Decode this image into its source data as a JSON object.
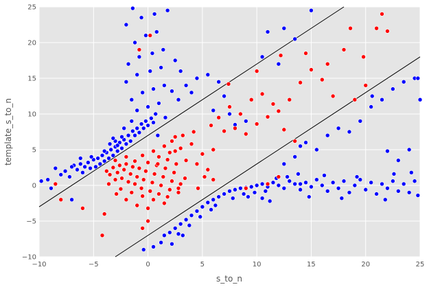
{
  "chart_data": {
    "type": "scatter",
    "title": "",
    "xlabel": "s_to_n",
    "ylabel": "template_s_to_n",
    "xlim": [
      -10,
      25
    ],
    "ylim": [
      -10,
      25
    ],
    "x_ticks": [
      -10,
      -5,
      0,
      5,
      10,
      15,
      20,
      25
    ],
    "y_ticks": [
      -10,
      -5,
      0,
      5,
      10,
      15,
      20,
      25
    ],
    "x_tick_labels": [
      "−10",
      "−5",
      "0",
      "5",
      "10",
      "15",
      "20",
      "25"
    ],
    "y_tick_labels": [
      "−10",
      "−5",
      "0",
      "5",
      "10",
      "15",
      "20",
      "25"
    ],
    "grid": true,
    "legend": "none",
    "colors": {
      "background": "#e5e5e5",
      "grid": "#ffffff",
      "series_blue": "#0000ff",
      "series_red": "#ff0000",
      "lines": "#000000"
    },
    "reference_lines": [
      {
        "slope": 1,
        "intercept": 7
      },
      {
        "slope": 1,
        "intercept": -7
      }
    ],
    "series": [
      {
        "color": "#0000ff",
        "points": [
          [
            -9.8,
            0.6
          ],
          [
            -9.2,
            0.8
          ],
          [
            -8.9,
            -0.4
          ],
          [
            -8.5,
            2.4
          ],
          [
            -8.0,
            1.5
          ],
          [
            -7.6,
            2.0
          ],
          [
            -7.2,
            1.2
          ],
          [
            -7.0,
            -2.0
          ],
          [
            -6.8,
            2.8
          ],
          [
            -6.5,
            2.2
          ],
          [
            -6.2,
            3.0
          ],
          [
            -6.0,
            1.8
          ],
          [
            -5.8,
            2.6
          ],
          [
            -5.5,
            3.2
          ],
          [
            -5.3,
            2.4
          ],
          [
            -5.0,
            3.6
          ],
          [
            -4.8,
            2.6
          ],
          [
            -4.6,
            3.8
          ],
          [
            -4.4,
            3.0
          ],
          [
            -4.2,
            4.2
          ],
          [
            -4.0,
            3.4
          ],
          [
            -3.8,
            4.6
          ],
          [
            -3.6,
            3.8
          ],
          [
            -3.4,
            5.0
          ],
          [
            -3.2,
            4.2
          ],
          [
            -3.0,
            5.4
          ],
          [
            -2.8,
            4.8
          ],
          [
            -2.6,
            6.0
          ],
          [
            -2.4,
            5.2
          ],
          [
            -2.2,
            6.4
          ],
          [
            -2.0,
            5.8
          ],
          [
            -1.8,
            7.0
          ],
          [
            -1.6,
            6.2
          ],
          [
            -1.4,
            7.6
          ],
          [
            -1.2,
            7.0
          ],
          [
            -1.0,
            8.0
          ],
          [
            -0.8,
            7.4
          ],
          [
            -0.6,
            8.6
          ],
          [
            -0.4,
            8.0
          ],
          [
            -0.2,
            9.0
          ],
          [
            0.0,
            8.4
          ],
          [
            0.3,
            9.4
          ],
          [
            0.5,
            8.8
          ],
          [
            0.7,
            10.0
          ],
          [
            -1.5,
            9.0
          ],
          [
            -2.2,
            8.0
          ],
          [
            -3.0,
            6.2
          ],
          [
            -1.0,
            10.5
          ],
          [
            0.0,
            11.0
          ],
          [
            1.0,
            11.5
          ],
          [
            -1.5,
            12.0
          ],
          [
            -0.5,
            13.0
          ],
          [
            0.5,
            13.5
          ],
          [
            1.5,
            14.0
          ],
          [
            -2.0,
            14.5
          ],
          [
            -1.0,
            15.5
          ],
          [
            0.2,
            16.0
          ],
          [
            1.2,
            16.5
          ],
          [
            -1.8,
            17.0
          ],
          [
            -0.8,
            18.0
          ],
          [
            0.4,
            18.5
          ],
          [
            1.4,
            19.0
          ],
          [
            -1.2,
            20.0
          ],
          [
            -0.2,
            21.0
          ],
          [
            0.8,
            21.5
          ],
          [
            -2.0,
            22.5
          ],
          [
            -0.6,
            23.5
          ],
          [
            0.6,
            24.0
          ],
          [
            1.8,
            24.5
          ],
          [
            -1.4,
            24.8
          ],
          [
            2.5,
            17.5
          ],
          [
            3.0,
            16.0
          ],
          [
            3.5,
            14.0
          ],
          [
            4.0,
            13.0
          ],
          [
            4.5,
            15.0
          ],
          [
            5.5,
            15.5
          ],
          [
            6.5,
            14.5
          ],
          [
            7.0,
            12.5
          ],
          [
            2.8,
            12.0
          ],
          [
            2.2,
            13.2
          ],
          [
            0.9,
            7.0
          ],
          [
            1.6,
            9.5
          ],
          [
            -3.5,
            5.8
          ],
          [
            -4.0,
            4.8
          ],
          [
            -5.2,
            4.0
          ],
          [
            -6.2,
            3.8
          ],
          [
            -7.0,
            2.6
          ],
          [
            -2.8,
            5.6
          ],
          [
            -2.4,
            6.8
          ],
          [
            -3.2,
            6.6
          ],
          [
            1.5,
            -7.0
          ],
          [
            2.0,
            -6.6
          ],
          [
            2.5,
            -6.0
          ],
          [
            3.0,
            -5.4
          ],
          [
            3.5,
            -4.8
          ],
          [
            4.0,
            -4.2
          ],
          [
            4.5,
            -3.6
          ],
          [
            5.0,
            -3.0
          ],
          [
            5.5,
            -2.4
          ],
          [
            6.0,
            -2.0
          ],
          [
            6.5,
            -1.6
          ],
          [
            7.0,
            -1.2
          ],
          [
            7.5,
            -0.8
          ],
          [
            8.0,
            -0.6
          ],
          [
            8.5,
            -0.4
          ],
          [
            9.0,
            -0.3
          ],
          [
            9.5,
            -0.2
          ],
          [
            10.0,
            0.0
          ],
          [
            10.5,
            0.2
          ],
          [
            11.0,
            -0.2
          ],
          [
            11.5,
            0.4
          ],
          [
            12.0,
            0.0
          ],
          [
            12.5,
            -0.4
          ],
          [
            13.0,
            0.6
          ],
          [
            13.5,
            0.2
          ],
          [
            14.0,
            -0.6
          ],
          [
            14.5,
            0.4
          ],
          [
            15.0,
            -0.2
          ],
          [
            15.5,
            0.8
          ],
          [
            16.0,
            0.0
          ],
          [
            16.5,
            -0.8
          ],
          [
            17.0,
            0.4
          ],
          [
            17.5,
            -0.4
          ],
          [
            18.0,
            0.6
          ],
          [
            18.5,
            -1.0
          ],
          [
            19.0,
            0.0
          ],
          [
            19.5,
            0.8
          ],
          [
            20.0,
            -0.6
          ],
          [
            20.5,
            0.4
          ],
          [
            21.0,
            -1.2
          ],
          [
            21.5,
            0.2
          ],
          [
            22.0,
            -0.4
          ],
          [
            22.5,
            0.6
          ],
          [
            23.0,
            -0.8
          ],
          [
            23.5,
            0.2
          ],
          [
            24.0,
            -1.0
          ],
          [
            24.5,
            0.6
          ],
          [
            24.8,
            -1.4
          ],
          [
            6.2,
            -2.8
          ],
          [
            5.8,
            -3.4
          ],
          [
            4.8,
            -4.4
          ],
          [
            3.8,
            -5.6
          ],
          [
            2.8,
            -6.8
          ],
          [
            1.2,
            -8.0
          ],
          [
            0.5,
            -8.6
          ],
          [
            -0.4,
            -9.0
          ],
          [
            2.2,
            -8.2
          ],
          [
            3.2,
            -7.0
          ],
          [
            7.8,
            -1.8
          ],
          [
            8.8,
            -1.2
          ],
          [
            9.8,
            -1.0
          ],
          [
            10.8,
            -0.8
          ],
          [
            11.8,
            1.0
          ],
          [
            12.8,
            1.2
          ],
          [
            13.8,
            1.6
          ],
          [
            14.8,
            -1.6
          ],
          [
            16.2,
            1.4
          ],
          [
            17.8,
            -1.8
          ],
          [
            19.2,
            1.2
          ],
          [
            21.8,
            -2.0
          ],
          [
            22.6,
            1.6
          ],
          [
            24.2,
            1.8
          ],
          [
            12.5,
            3.0
          ],
          [
            13.5,
            4.0
          ],
          [
            14.5,
            6.0
          ],
          [
            15.5,
            5.0
          ],
          [
            16.5,
            7.0
          ],
          [
            17.5,
            8.0
          ],
          [
            18.5,
            7.5
          ],
          [
            19.5,
            9.0
          ],
          [
            20.5,
            11.0
          ],
          [
            21.5,
            12.0
          ],
          [
            22.5,
            13.5
          ],
          [
            23.5,
            14.5
          ],
          [
            24.5,
            15.0
          ],
          [
            20.6,
            12.5
          ],
          [
            14.0,
            5.5
          ],
          [
            22.0,
            4.8
          ],
          [
            23.0,
            3.5
          ],
          [
            24.0,
            5.0
          ],
          [
            15.0,
            24.5
          ],
          [
            13.5,
            20.5
          ],
          [
            12.5,
            22.0
          ],
          [
            11.0,
            21.5
          ],
          [
            10.5,
            18.0
          ],
          [
            12.0,
            17.0
          ],
          [
            8.0,
            8.5
          ],
          [
            9.0,
            9.0
          ],
          [
            7.5,
            10.0
          ],
          [
            6.0,
            10.5
          ],
          [
            25.0,
            12.0
          ],
          [
            24.8,
            15.0
          ],
          [
            14.0,
            0.2
          ],
          [
            10.5,
            -1.8
          ],
          [
            11.2,
            -2.2
          ],
          [
            9.2,
            -1.6
          ]
        ]
      },
      {
        "color": "#ff0000",
        "points": [
          [
            -3.8,
            2.0
          ],
          [
            -3.5,
            1.5
          ],
          [
            -3.2,
            2.5
          ],
          [
            -3.0,
            0.8
          ],
          [
            -2.8,
            1.8
          ],
          [
            -2.6,
            2.8
          ],
          [
            -2.4,
            1.0
          ],
          [
            -2.2,
            2.2
          ],
          [
            -2.0,
            3.0
          ],
          [
            -1.8,
            0.5
          ],
          [
            -1.6,
            1.6
          ],
          [
            -1.4,
            2.6
          ],
          [
            -1.2,
            0.2
          ],
          [
            -1.0,
            1.2
          ],
          [
            -0.8,
            2.4
          ],
          [
            -0.6,
            -0.4
          ],
          [
            -0.4,
            0.8
          ],
          [
            -0.2,
            2.0
          ],
          [
            0.0,
            3.2
          ],
          [
            0.2,
            -0.8
          ],
          [
            0.4,
            0.4
          ],
          [
            0.6,
            1.6
          ],
          [
            0.8,
            2.8
          ],
          [
            1.0,
            -1.2
          ],
          [
            1.2,
            0.0
          ],
          [
            1.4,
            1.2
          ],
          [
            1.6,
            2.4
          ],
          [
            1.8,
            3.6
          ],
          [
            2.0,
            -0.6
          ],
          [
            2.2,
            0.6
          ],
          [
            2.4,
            1.8
          ],
          [
            2.6,
            3.0
          ],
          [
            2.8,
            -1.0
          ],
          [
            3.0,
            0.2
          ],
          [
            -2.5,
            -0.5
          ],
          [
            -1.5,
            -1.0
          ],
          [
            -0.5,
            -1.5
          ],
          [
            0.5,
            -2.0
          ],
          [
            1.5,
            -2.5
          ],
          [
            -2.0,
            -2.0
          ],
          [
            -1.0,
            -2.8
          ],
          [
            0.0,
            -3.2
          ],
          [
            1.0,
            4.0
          ],
          [
            2.0,
            4.6
          ],
          [
            3.0,
            5.2
          ],
          [
            4.0,
            5.8
          ],
          [
            5.0,
            4.4
          ],
          [
            6.0,
            5.0
          ],
          [
            7.0,
            7.6
          ],
          [
            8.0,
            8.0
          ],
          [
            9.0,
            7.2
          ],
          [
            10.0,
            8.6
          ],
          [
            11.0,
            9.6
          ],
          [
            12.0,
            10.4
          ],
          [
            13.0,
            12.0
          ],
          [
            14.0,
            14.4
          ],
          [
            15.0,
            16.2
          ],
          [
            16.0,
            14.8
          ],
          [
            17.0,
            12.5
          ],
          [
            18.0,
            19.0
          ],
          [
            19.0,
            12.0
          ],
          [
            20.0,
            14.0
          ],
          [
            21.0,
            22.0
          ],
          [
            21.5,
            24.0
          ],
          [
            22.0,
            21.6
          ],
          [
            -4.0,
            -4.0
          ],
          [
            -4.2,
            -7.0
          ],
          [
            -6.0,
            -3.2
          ],
          [
            -8.0,
            -2.0
          ],
          [
            -8.5,
            0.2
          ],
          [
            0.0,
            -5.0
          ],
          [
            -0.5,
            -6.0
          ],
          [
            2.5,
            4.8
          ],
          [
            3.5,
            3.5
          ],
          [
            4.5,
            3.0
          ],
          [
            5.5,
            2.2
          ],
          [
            6.5,
            9.5
          ],
          [
            7.5,
            11.0
          ],
          [
            8.5,
            10.0
          ],
          [
            9.5,
            12.0
          ],
          [
            10.5,
            12.8
          ],
          [
            11.5,
            11.4
          ],
          [
            12.5,
            7.8
          ],
          [
            13.5,
            6.2
          ],
          [
            4.2,
            7.5
          ],
          [
            3.2,
            7.0
          ],
          [
            2.2,
            6.2
          ],
          [
            5.8,
            8.4
          ],
          [
            -3.0,
            3.5
          ],
          [
            -2.0,
            4.0
          ],
          [
            1.5,
            5.5
          ],
          [
            2.5,
            6.8
          ],
          [
            0.5,
            4.8
          ],
          [
            -0.5,
            4.2
          ],
          [
            14.5,
            18.5
          ],
          [
            10.0,
            16.0
          ],
          [
            12.2,
            18.2
          ],
          [
            0.2,
            21.0
          ],
          [
            -0.8,
            19.0
          ],
          [
            6.0,
            0.8
          ],
          [
            11.0,
            0.2
          ],
          [
            12.0,
            1.2
          ],
          [
            9.0,
            -0.4
          ],
          [
            -3.6,
            0.2
          ],
          [
            -2.9,
            -1.2
          ],
          [
            1.8,
            -1.6
          ],
          [
            3.4,
            1.0
          ],
          [
            -1.2,
            3.4
          ],
          [
            0.9,
            3.0
          ],
          [
            2.8,
            -0.4
          ],
          [
            16.5,
            17.0
          ],
          [
            19.8,
            18.0
          ],
          [
            18.6,
            22.0
          ],
          [
            5.2,
            1.2
          ],
          [
            4.6,
            -0.4
          ],
          [
            7.4,
            14.2
          ]
        ]
      }
    ]
  }
}
